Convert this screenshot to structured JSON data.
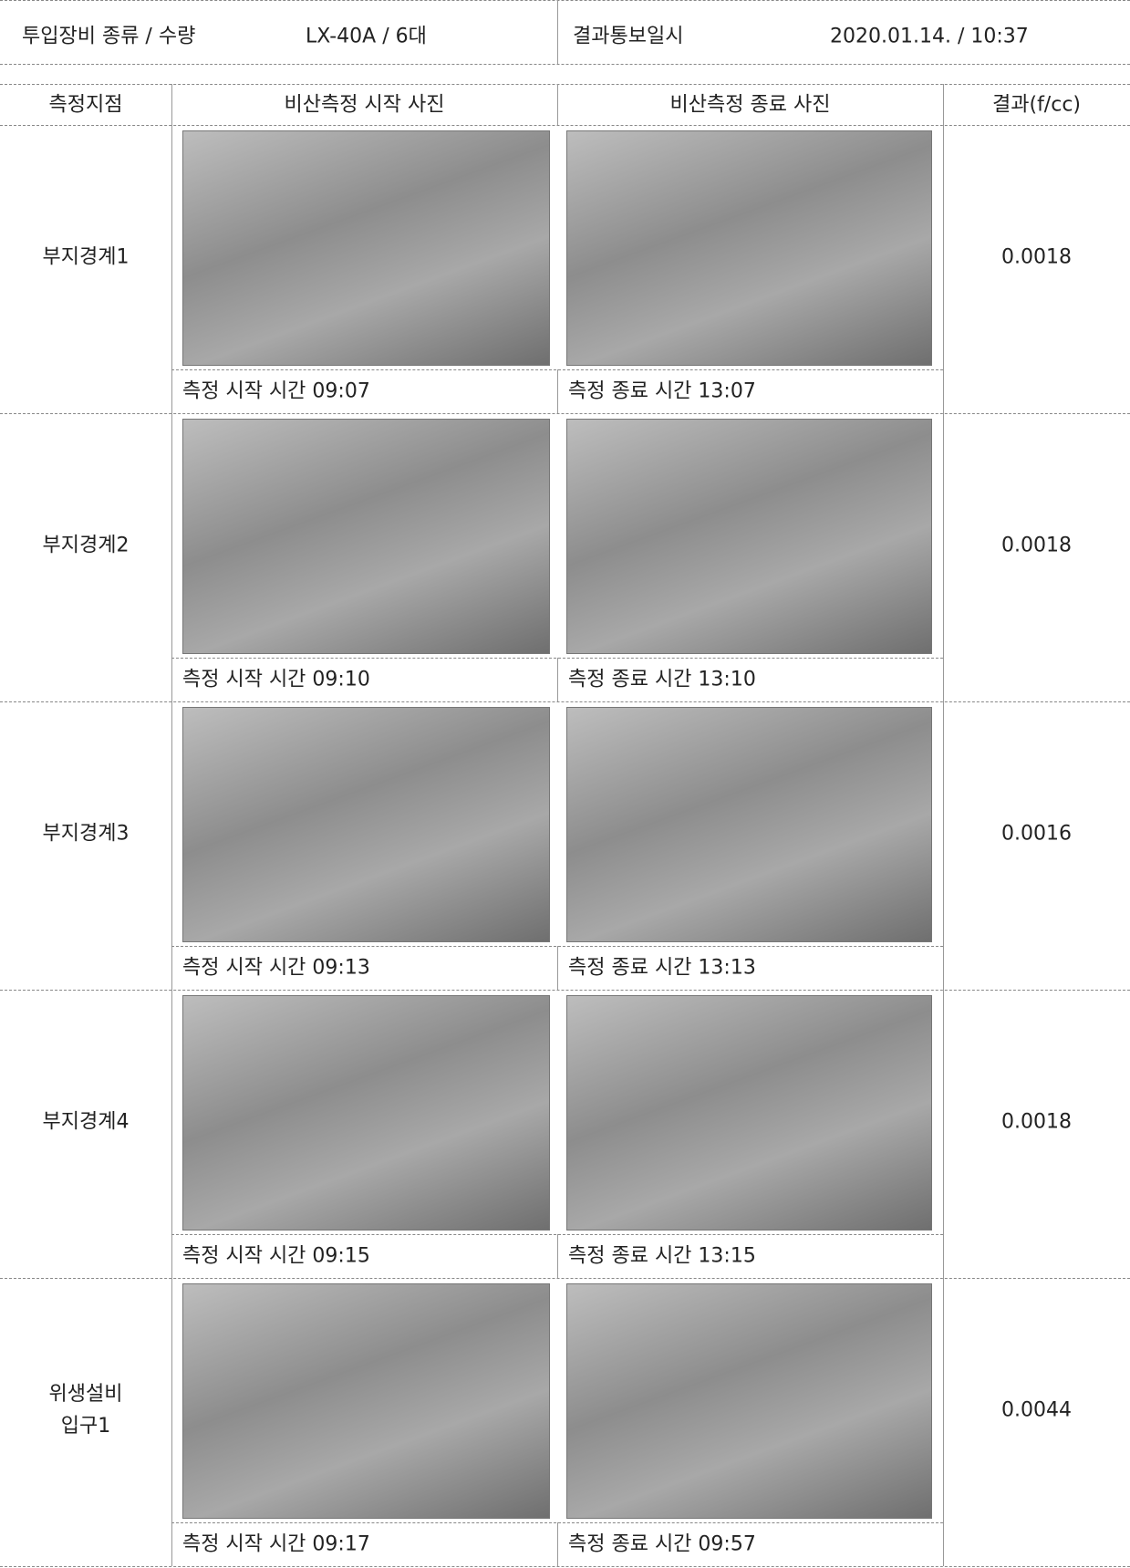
{
  "header": {
    "equipment_label": "투입장비 종류 / 수량",
    "equipment_value": "LX-40A / 6대",
    "notice_label": "결과통보일시",
    "notice_value": "2020.01.14. / 10:37"
  },
  "table": {
    "columns": [
      "측정지점",
      "비산측정 시작 사진",
      "비산측정 종료 사진",
      "결과(f/cc)"
    ],
    "rows": [
      {
        "location": "부지경계1",
        "start_time": "측정 시작 시간 09:07",
        "end_time": "측정 종료 시간 13:07",
        "result": "0.0018"
      },
      {
        "location": "부지경계2",
        "start_time": "측정 시작 시간 09:10",
        "end_time": "측정 종료 시간 13:10",
        "result": "0.0018"
      },
      {
        "location": "부지경계3",
        "start_time": "측정 시작 시간 09:13",
        "end_time": "측정 종료 시간 13:13",
        "result": "0.0016"
      },
      {
        "location": "부지경계4",
        "start_time": "측정 시작 시간 09:15",
        "end_time": "측정 종료 시간 13:15",
        "result": "0.0018"
      },
      {
        "location": "위생설비\n입구1",
        "start_time": "측정 시작 시간 09:17",
        "end_time": "측정 종료 시간 09:57",
        "result": "0.0044"
      }
    ]
  }
}
